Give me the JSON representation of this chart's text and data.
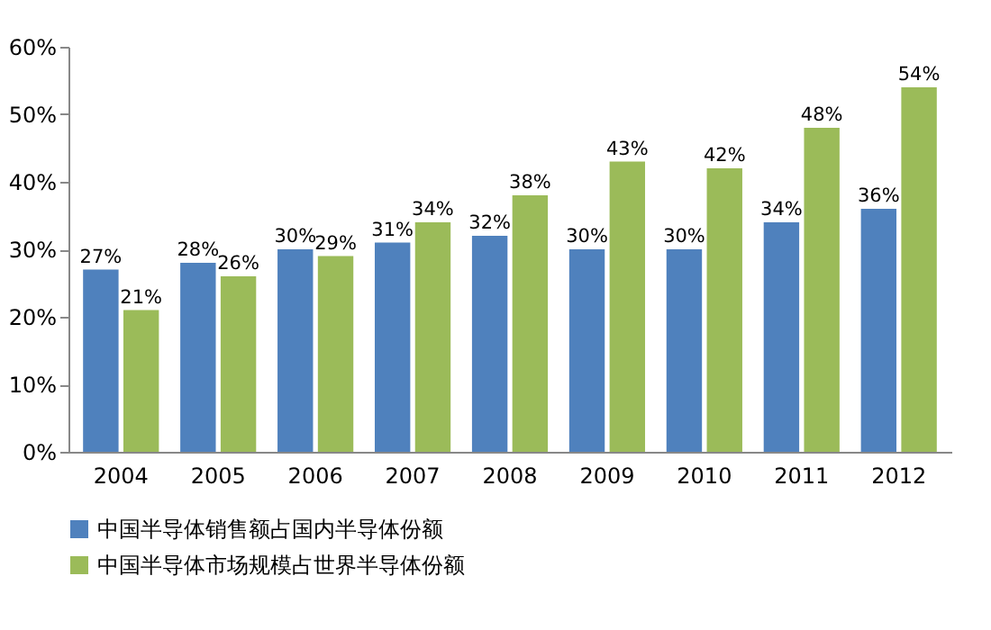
{
  "chart_data": {
    "type": "bar",
    "categories": [
      "2004",
      "2005",
      "2006",
      "2007",
      "2008",
      "2009",
      "2010",
      "2011",
      "2012"
    ],
    "series": [
      {
        "name": "中国半导体销售额占国内半导体份额",
        "color": "#4f81bd",
        "values": [
          27,
          28,
          30,
          31,
          32,
          30,
          30,
          34,
          36
        ],
        "value_labels": [
          "27%",
          "28%",
          "30%",
          "31%",
          "32%",
          "30%",
          "30%",
          "34%",
          "36%"
        ]
      },
      {
        "name": "中国半导体市场规模占世界半导体份额",
        "color": "#9bbb59",
        "values": [
          21,
          26,
          29,
          34,
          38,
          43,
          42,
          48,
          54
        ],
        "value_labels": [
          "21%",
          "26%",
          "29%",
          "34%",
          "38%",
          "43%",
          "42%",
          "48%",
          "54%"
        ]
      }
    ],
    "ylim": [
      0,
      60
    ],
    "yticks": [
      {
        "value": 0,
        "label": "0%"
      },
      {
        "value": 10,
        "label": "10%"
      },
      {
        "value": 20,
        "label": "20%"
      },
      {
        "value": 30,
        "label": "30%"
      },
      {
        "value": 40,
        "label": "40%"
      },
      {
        "value": 50,
        "label": "50%"
      },
      {
        "value": 60,
        "label": "60%"
      }
    ],
    "grid": false,
    "legend": "bottom"
  }
}
